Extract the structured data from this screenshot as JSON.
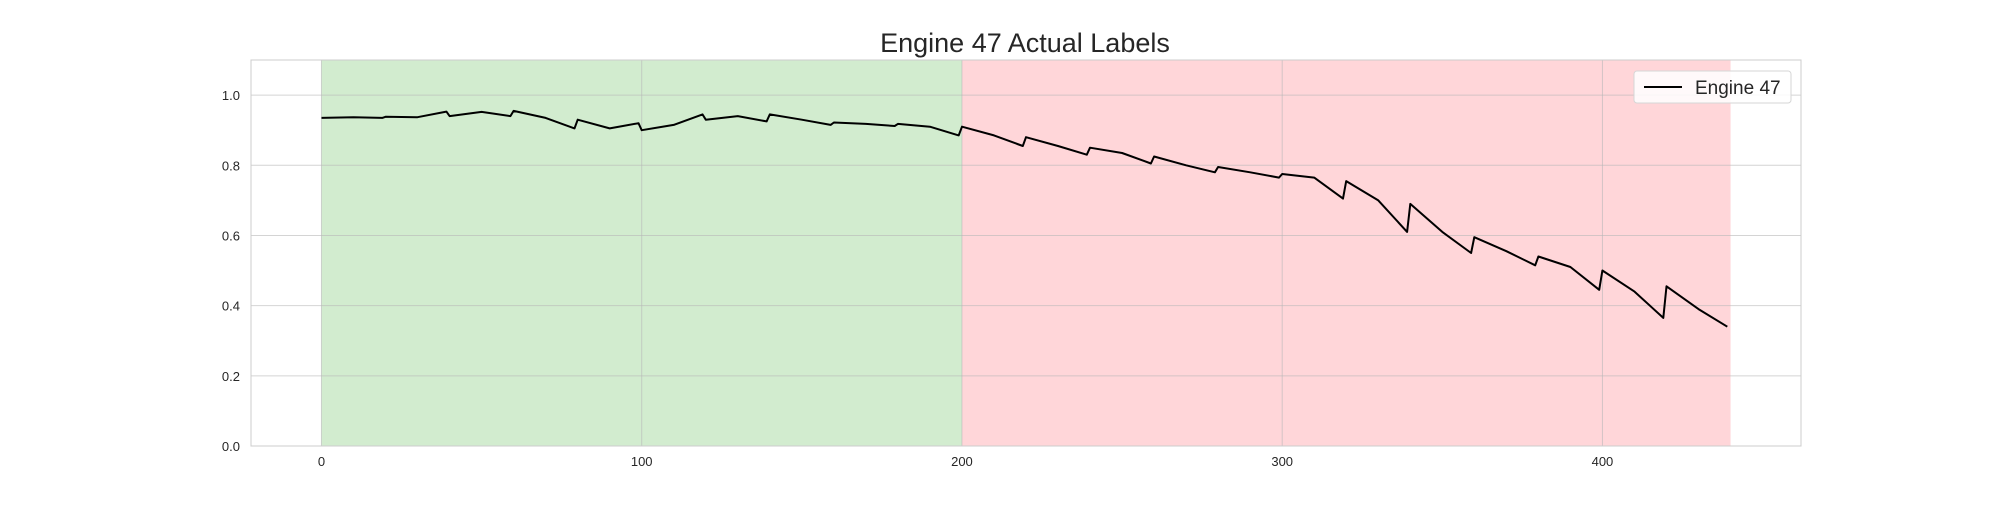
{
  "chart_data": {
    "type": "line",
    "title": "Engine 47 Actual Labels",
    "xlabel": "",
    "ylabel": "",
    "xlim": [
      -22,
      462
    ],
    "ylim": [
      0.0,
      1.1
    ],
    "x_ticks": [
      0,
      100,
      200,
      300,
      400
    ],
    "y_ticks": [
      0.0,
      0.2,
      0.4,
      0.6,
      0.8,
      1.0
    ],
    "x_tick_labels": [
      "0",
      "100",
      "200",
      "300",
      "400"
    ],
    "y_tick_labels": [
      "0.0",
      "0.2",
      "0.4",
      "0.6",
      "0.8",
      "1.0"
    ],
    "grid": true,
    "legend": {
      "entries": [
        "Engine 47"
      ],
      "placement": "top-right"
    },
    "label_regions": [
      {
        "x_start": 0,
        "x_end": 200,
        "color": "#a6d9a0"
      },
      {
        "x_start": 200,
        "x_end": 440,
        "color": "#ffaeb4"
      }
    ],
    "series": [
      {
        "name": "Engine 47",
        "color": "#000000",
        "x": [
          0,
          10,
          19,
          20,
          30,
          39,
          40,
          50,
          59,
          60,
          70,
          79,
          80,
          90,
          99,
          100,
          110,
          119,
          120,
          130,
          139,
          140,
          150,
          159,
          160,
          170,
          179,
          180,
          190,
          199,
          200,
          210,
          219,
          220,
          230,
          239,
          240,
          250,
          259,
          260,
          270,
          279,
          280,
          290,
          299,
          300,
          310,
          319,
          320,
          330,
          339,
          340,
          350,
          359,
          360,
          370,
          379,
          380,
          390,
          399,
          400,
          410,
          419,
          420,
          430,
          439
        ],
        "y": [
          0.935,
          0.937,
          0.935,
          0.938,
          0.937,
          0.953,
          0.94,
          0.952,
          0.94,
          0.955,
          0.935,
          0.905,
          0.93,
          0.905,
          0.92,
          0.9,
          0.915,
          0.945,
          0.93,
          0.94,
          0.925,
          0.945,
          0.93,
          0.915,
          0.922,
          0.918,
          0.912,
          0.918,
          0.91,
          0.885,
          0.91,
          0.885,
          0.855,
          0.88,
          0.855,
          0.83,
          0.85,
          0.835,
          0.805,
          0.825,
          0.8,
          0.78,
          0.795,
          0.78,
          0.765,
          0.775,
          0.765,
          0.705,
          0.755,
          0.7,
          0.61,
          0.69,
          0.61,
          0.55,
          0.595,
          0.555,
          0.515,
          0.54,
          0.51,
          0.445,
          0.5,
          0.44,
          0.365,
          0.455,
          0.39,
          0.34
        ]
      }
    ]
  }
}
